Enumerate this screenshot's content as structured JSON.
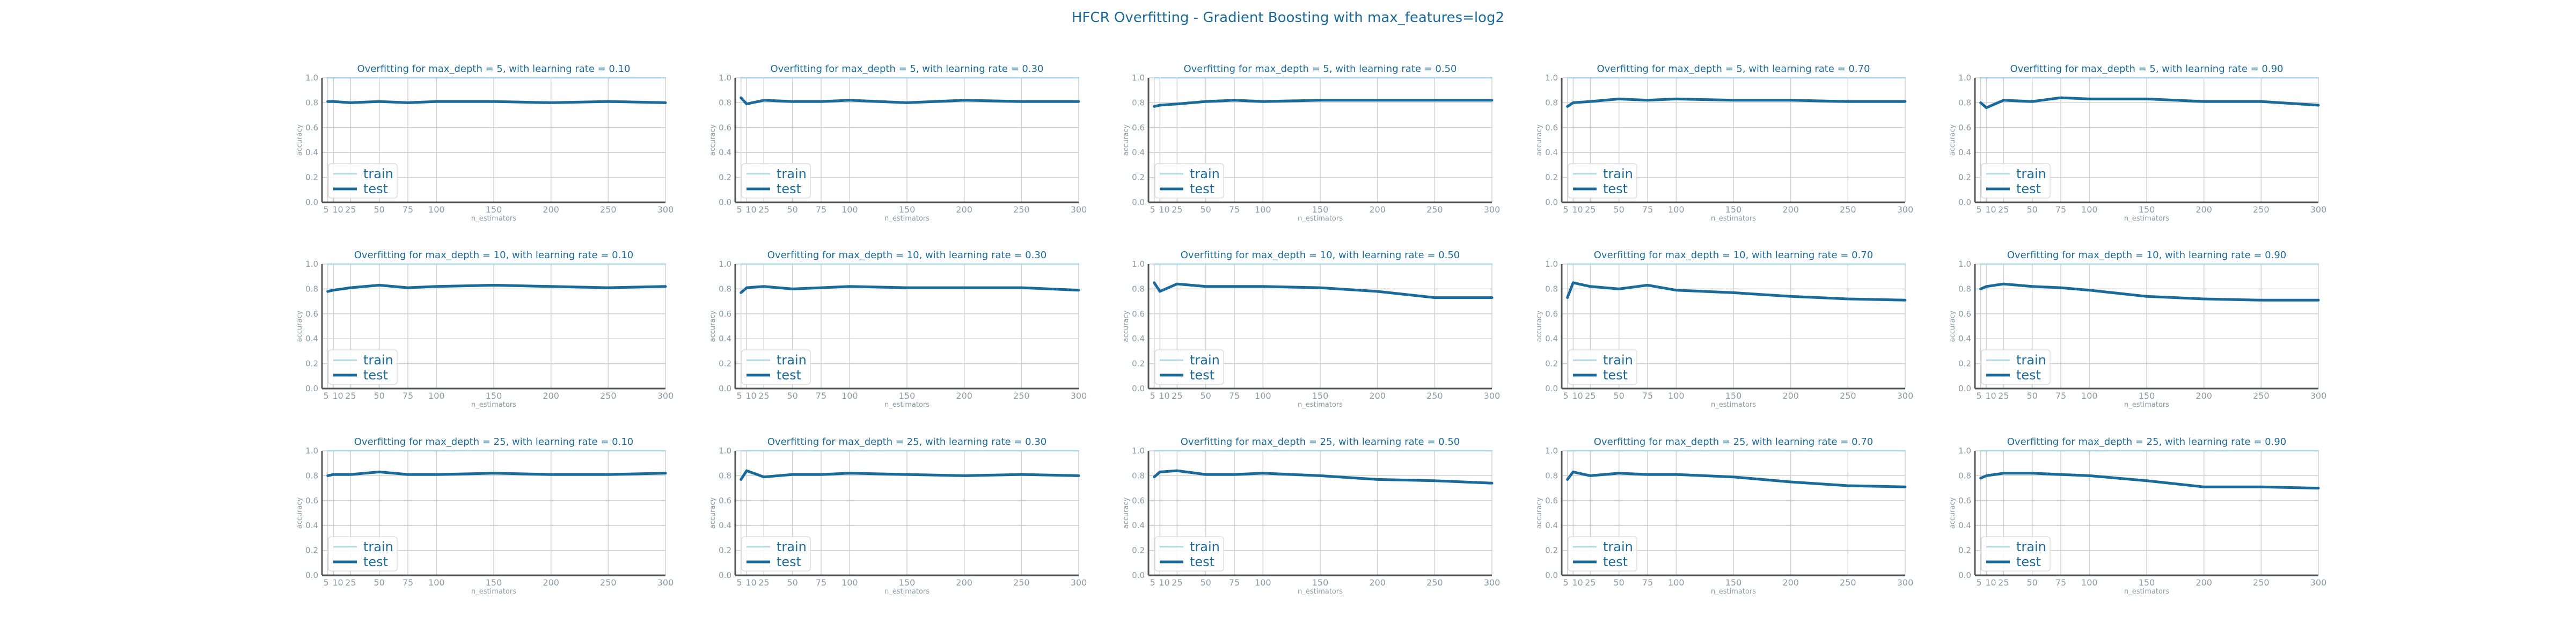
{
  "figure": {
    "title": "HFCR Overfitting - Gradient Boosting with max_features=log2"
  },
  "colors": {
    "train": "#a8d8e8",
    "test": "#1a6a9a",
    "title": "#1a6a9a",
    "axis_label": "#8a9aa6",
    "grid": "#d0d0d0",
    "axis": "#555555"
  },
  "chart_data": [
    {
      "type": "line",
      "title": "Overfitting for max_depth = 5, with learning rate = 0.10",
      "xlabel": "n_estimators",
      "ylabel": "accuracy",
      "x": [
        5,
        10,
        25,
        50,
        75,
        100,
        150,
        200,
        250,
        300
      ],
      "xticks": [
        5,
        10,
        25,
        50,
        75,
        100,
        150,
        200,
        250,
        300
      ],
      "ylim": [
        0,
        1
      ],
      "yticks": [
        0.0,
        0.2,
        0.4,
        0.6,
        0.8,
        1.0
      ],
      "grid": true,
      "legend": "lower left",
      "series": [
        {
          "name": "train",
          "values": [
            1,
            1,
            1,
            1,
            1,
            1,
            1,
            1,
            1,
            1
          ]
        },
        {
          "name": "test",
          "values": [
            0.81,
            0.81,
            0.8,
            0.81,
            0.8,
            0.81,
            0.81,
            0.8,
            0.81,
            0.8
          ]
        }
      ]
    },
    {
      "type": "line",
      "title": "Overfitting for max_depth = 5, with learning rate = 0.30",
      "xlabel": "n_estimators",
      "ylabel": "accuracy",
      "x": [
        5,
        10,
        25,
        50,
        75,
        100,
        150,
        200,
        250,
        300
      ],
      "xticks": [
        5,
        10,
        25,
        50,
        75,
        100,
        150,
        200,
        250,
        300
      ],
      "ylim": [
        0,
        1
      ],
      "yticks": [
        0.0,
        0.2,
        0.4,
        0.6,
        0.8,
        1.0
      ],
      "grid": true,
      "legend": "lower left",
      "series": [
        {
          "name": "train",
          "values": [
            1,
            1,
            1,
            1,
            1,
            1,
            1,
            1,
            1,
            1
          ]
        },
        {
          "name": "test",
          "values": [
            0.84,
            0.79,
            0.82,
            0.81,
            0.81,
            0.82,
            0.8,
            0.82,
            0.81,
            0.81
          ]
        }
      ]
    },
    {
      "type": "line",
      "title": "Overfitting for max_depth = 5, with learning rate = 0.50",
      "xlabel": "n_estimators",
      "ylabel": "accuracy",
      "x": [
        5,
        10,
        25,
        50,
        75,
        100,
        150,
        200,
        250,
        300
      ],
      "xticks": [
        5,
        10,
        25,
        50,
        75,
        100,
        150,
        200,
        250,
        300
      ],
      "ylim": [
        0,
        1
      ],
      "yticks": [
        0.0,
        0.2,
        0.4,
        0.6,
        0.8,
        1.0
      ],
      "grid": true,
      "legend": "lower left",
      "series": [
        {
          "name": "train",
          "values": [
            1,
            1,
            1,
            1,
            1,
            1,
            1,
            1,
            1,
            1
          ]
        },
        {
          "name": "test",
          "values": [
            0.77,
            0.78,
            0.79,
            0.81,
            0.82,
            0.81,
            0.82,
            0.82,
            0.82,
            0.82
          ]
        }
      ]
    },
    {
      "type": "line",
      "title": "Overfitting for max_depth = 5, with learning rate = 0.70",
      "xlabel": "n_estimators",
      "ylabel": "accuracy",
      "x": [
        5,
        10,
        25,
        50,
        75,
        100,
        150,
        200,
        250,
        300
      ],
      "xticks": [
        5,
        10,
        25,
        50,
        75,
        100,
        150,
        200,
        250,
        300
      ],
      "ylim": [
        0,
        1
      ],
      "yticks": [
        0.0,
        0.2,
        0.4,
        0.6,
        0.8,
        1.0
      ],
      "grid": true,
      "legend": "lower left",
      "series": [
        {
          "name": "train",
          "values": [
            1,
            1,
            1,
            1,
            1,
            1,
            1,
            1,
            1,
            1
          ]
        },
        {
          "name": "test",
          "values": [
            0.77,
            0.8,
            0.81,
            0.83,
            0.82,
            0.83,
            0.82,
            0.82,
            0.81,
            0.81
          ]
        }
      ]
    },
    {
      "type": "line",
      "title": "Overfitting for max_depth = 5, with learning rate = 0.90",
      "xlabel": "n_estimators",
      "ylabel": "accuracy",
      "x": [
        5,
        10,
        25,
        50,
        75,
        100,
        150,
        200,
        250,
        300
      ],
      "xticks": [
        5,
        10,
        25,
        50,
        75,
        100,
        150,
        200,
        250,
        300
      ],
      "ylim": [
        0,
        1
      ],
      "yticks": [
        0.0,
        0.2,
        0.4,
        0.6,
        0.8,
        1.0
      ],
      "grid": true,
      "legend": "lower left",
      "series": [
        {
          "name": "train",
          "values": [
            1,
            1,
            1,
            1,
            1,
            1,
            1,
            1,
            1,
            1
          ]
        },
        {
          "name": "test",
          "values": [
            0.8,
            0.76,
            0.82,
            0.81,
            0.84,
            0.83,
            0.83,
            0.81,
            0.81,
            0.78
          ]
        }
      ]
    },
    {
      "type": "line",
      "title": "Overfitting for max_depth = 10, with learning rate = 0.10",
      "xlabel": "n_estimators",
      "ylabel": "accuracy",
      "x": [
        5,
        10,
        25,
        50,
        75,
        100,
        150,
        200,
        250,
        300
      ],
      "xticks": [
        5,
        10,
        25,
        50,
        75,
        100,
        150,
        200,
        250,
        300
      ],
      "ylim": [
        0,
        1
      ],
      "yticks": [
        0.0,
        0.2,
        0.4,
        0.6,
        0.8,
        1.0
      ],
      "grid": true,
      "legend": "lower left",
      "series": [
        {
          "name": "train",
          "values": [
            1,
            1,
            1,
            1,
            1,
            1,
            1,
            1,
            1,
            1
          ]
        },
        {
          "name": "test",
          "values": [
            0.78,
            0.79,
            0.81,
            0.83,
            0.81,
            0.82,
            0.83,
            0.82,
            0.81,
            0.82
          ]
        }
      ]
    },
    {
      "type": "line",
      "title": "Overfitting for max_depth = 10, with learning rate = 0.30",
      "xlabel": "n_estimators",
      "ylabel": "accuracy",
      "x": [
        5,
        10,
        25,
        50,
        75,
        100,
        150,
        200,
        250,
        300
      ],
      "xticks": [
        5,
        10,
        25,
        50,
        75,
        100,
        150,
        200,
        250,
        300
      ],
      "ylim": [
        0,
        1
      ],
      "yticks": [
        0.0,
        0.2,
        0.4,
        0.6,
        0.8,
        1.0
      ],
      "grid": true,
      "legend": "lower left",
      "series": [
        {
          "name": "train",
          "values": [
            1,
            1,
            1,
            1,
            1,
            1,
            1,
            1,
            1,
            1
          ]
        },
        {
          "name": "test",
          "values": [
            0.77,
            0.81,
            0.82,
            0.8,
            0.81,
            0.82,
            0.81,
            0.81,
            0.81,
            0.79
          ]
        }
      ]
    },
    {
      "type": "line",
      "title": "Overfitting for max_depth = 10, with learning rate = 0.50",
      "xlabel": "n_estimators",
      "ylabel": "accuracy",
      "x": [
        5,
        10,
        25,
        50,
        75,
        100,
        150,
        200,
        250,
        300
      ],
      "xticks": [
        5,
        10,
        25,
        50,
        75,
        100,
        150,
        200,
        250,
        300
      ],
      "ylim": [
        0,
        1
      ],
      "yticks": [
        0.0,
        0.2,
        0.4,
        0.6,
        0.8,
        1.0
      ],
      "grid": true,
      "legend": "lower left",
      "series": [
        {
          "name": "train",
          "values": [
            1,
            1,
            1,
            1,
            1,
            1,
            1,
            1,
            1,
            1
          ]
        },
        {
          "name": "test",
          "values": [
            0.85,
            0.78,
            0.84,
            0.82,
            0.82,
            0.82,
            0.81,
            0.78,
            0.73,
            0.73
          ]
        }
      ]
    },
    {
      "type": "line",
      "title": "Overfitting for max_depth = 10, with learning rate = 0.70",
      "xlabel": "n_estimators",
      "ylabel": "accuracy",
      "x": [
        5,
        10,
        25,
        50,
        75,
        100,
        150,
        200,
        250,
        300
      ],
      "xticks": [
        5,
        10,
        25,
        50,
        75,
        100,
        150,
        200,
        250,
        300
      ],
      "ylim": [
        0,
        1
      ],
      "yticks": [
        0.0,
        0.2,
        0.4,
        0.6,
        0.8,
        1.0
      ],
      "grid": true,
      "legend": "lower left",
      "series": [
        {
          "name": "train",
          "values": [
            1,
            1,
            1,
            1,
            1,
            1,
            1,
            1,
            1,
            1
          ]
        },
        {
          "name": "test",
          "values": [
            0.73,
            0.85,
            0.82,
            0.8,
            0.83,
            0.79,
            0.77,
            0.74,
            0.72,
            0.71
          ]
        }
      ]
    },
    {
      "type": "line",
      "title": "Overfitting for max_depth = 10, with learning rate = 0.90",
      "xlabel": "n_estimators",
      "ylabel": "accuracy",
      "x": [
        5,
        10,
        25,
        50,
        75,
        100,
        150,
        200,
        250,
        300
      ],
      "xticks": [
        5,
        10,
        25,
        50,
        75,
        100,
        150,
        200,
        250,
        300
      ],
      "ylim": [
        0,
        1
      ],
      "yticks": [
        0.0,
        0.2,
        0.4,
        0.6,
        0.8,
        1.0
      ],
      "grid": true,
      "legend": "lower left",
      "series": [
        {
          "name": "train",
          "values": [
            1,
            1,
            1,
            1,
            1,
            1,
            1,
            1,
            1,
            1
          ]
        },
        {
          "name": "test",
          "values": [
            0.8,
            0.82,
            0.84,
            0.82,
            0.81,
            0.79,
            0.74,
            0.72,
            0.71,
            0.71
          ]
        }
      ]
    },
    {
      "type": "line",
      "title": "Overfitting for max_depth = 25, with learning rate = 0.10",
      "xlabel": "n_estimators",
      "ylabel": "accuracy",
      "x": [
        5,
        10,
        25,
        50,
        75,
        100,
        150,
        200,
        250,
        300
      ],
      "xticks": [
        5,
        10,
        25,
        50,
        75,
        100,
        150,
        200,
        250,
        300
      ],
      "ylim": [
        0,
        1
      ],
      "yticks": [
        0.0,
        0.2,
        0.4,
        0.6,
        0.8,
        1.0
      ],
      "grid": true,
      "legend": "lower left",
      "series": [
        {
          "name": "train",
          "values": [
            1,
            1,
            1,
            1,
            1,
            1,
            1,
            1,
            1,
            1
          ]
        },
        {
          "name": "test",
          "values": [
            0.8,
            0.81,
            0.81,
            0.83,
            0.81,
            0.81,
            0.82,
            0.81,
            0.81,
            0.82
          ]
        }
      ]
    },
    {
      "type": "line",
      "title": "Overfitting for max_depth = 25, with learning rate = 0.30",
      "xlabel": "n_estimators",
      "ylabel": "accuracy",
      "x": [
        5,
        10,
        25,
        50,
        75,
        100,
        150,
        200,
        250,
        300
      ],
      "xticks": [
        5,
        10,
        25,
        50,
        75,
        100,
        150,
        200,
        250,
        300
      ],
      "ylim": [
        0,
        1
      ],
      "yticks": [
        0.0,
        0.2,
        0.4,
        0.6,
        0.8,
        1.0
      ],
      "grid": true,
      "legend": "lower left",
      "series": [
        {
          "name": "train",
          "values": [
            1,
            1,
            1,
            1,
            1,
            1,
            1,
            1,
            1,
            1
          ]
        },
        {
          "name": "test",
          "values": [
            0.77,
            0.84,
            0.79,
            0.81,
            0.81,
            0.82,
            0.81,
            0.8,
            0.81,
            0.8
          ]
        }
      ]
    },
    {
      "type": "line",
      "title": "Overfitting for max_depth = 25, with learning rate = 0.50",
      "xlabel": "n_estimators",
      "ylabel": "accuracy",
      "x": [
        5,
        10,
        25,
        50,
        75,
        100,
        150,
        200,
        250,
        300
      ],
      "xticks": [
        5,
        10,
        25,
        50,
        75,
        100,
        150,
        200,
        250,
        300
      ],
      "ylim": [
        0,
        1
      ],
      "yticks": [
        0.0,
        0.2,
        0.4,
        0.6,
        0.8,
        1.0
      ],
      "grid": true,
      "legend": "lower left",
      "series": [
        {
          "name": "train",
          "values": [
            1,
            1,
            1,
            1,
            1,
            1,
            1,
            1,
            1,
            1
          ]
        },
        {
          "name": "test",
          "values": [
            0.79,
            0.83,
            0.84,
            0.81,
            0.81,
            0.82,
            0.8,
            0.77,
            0.76,
            0.74
          ]
        }
      ]
    },
    {
      "type": "line",
      "title": "Overfitting for max_depth = 25, with learning rate = 0.70",
      "xlabel": "n_estimators",
      "ylabel": "accuracy",
      "x": [
        5,
        10,
        25,
        50,
        75,
        100,
        150,
        200,
        250,
        300
      ],
      "xticks": [
        5,
        10,
        25,
        50,
        75,
        100,
        150,
        200,
        250,
        300
      ],
      "ylim": [
        0,
        1
      ],
      "yticks": [
        0.0,
        0.2,
        0.4,
        0.6,
        0.8,
        1.0
      ],
      "grid": true,
      "legend": "lower left",
      "series": [
        {
          "name": "train",
          "values": [
            1,
            1,
            1,
            1,
            1,
            1,
            1,
            1,
            1,
            1
          ]
        },
        {
          "name": "test",
          "values": [
            0.77,
            0.83,
            0.8,
            0.82,
            0.81,
            0.81,
            0.79,
            0.75,
            0.72,
            0.71
          ]
        }
      ]
    },
    {
      "type": "line",
      "title": "Overfitting for max_depth = 25, with learning rate = 0.90",
      "xlabel": "n_estimators",
      "ylabel": "accuracy",
      "x": [
        5,
        10,
        25,
        50,
        75,
        100,
        150,
        200,
        250,
        300
      ],
      "xticks": [
        5,
        10,
        25,
        50,
        75,
        100,
        150,
        200,
        250,
        300
      ],
      "ylim": [
        0,
        1
      ],
      "yticks": [
        0.0,
        0.2,
        0.4,
        0.6,
        0.8,
        1.0
      ],
      "grid": true,
      "legend": "lower left",
      "series": [
        {
          "name": "train",
          "values": [
            1,
            1,
            1,
            1,
            1,
            1,
            1,
            1,
            1,
            1
          ]
        },
        {
          "name": "test",
          "values": [
            0.78,
            0.8,
            0.82,
            0.82,
            0.81,
            0.8,
            0.76,
            0.71,
            0.71,
            0.7
          ]
        }
      ]
    }
  ]
}
